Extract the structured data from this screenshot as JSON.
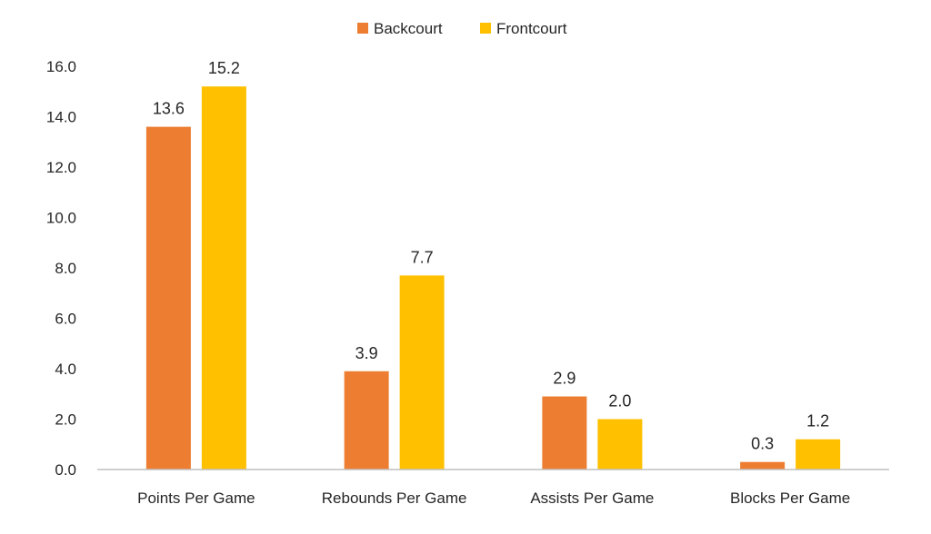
{
  "chart_data": {
    "type": "bar",
    "title": "",
    "xlabel": "",
    "ylabel": "",
    "categories": [
      "Points Per Game",
      "Rebounds Per Game",
      "Assists Per Game",
      "Blocks Per Game"
    ],
    "series": [
      {
        "name": "Backcourt",
        "color": "#ED7D31",
        "values": [
          13.6,
          3.9,
          2.9,
          0.3
        ]
      },
      {
        "name": "Frontcourt",
        "color": "#FFC000",
        "values": [
          15.2,
          7.7,
          2.0,
          1.2
        ]
      }
    ],
    "ylim": [
      0,
      16
    ],
    "yticks": [
      "0.0",
      "2.0",
      "4.0",
      "6.0",
      "8.0",
      "10.0",
      "12.0",
      "14.0",
      "16.0"
    ],
    "grid": false,
    "legend_position": "top-center",
    "data_labels": true
  }
}
